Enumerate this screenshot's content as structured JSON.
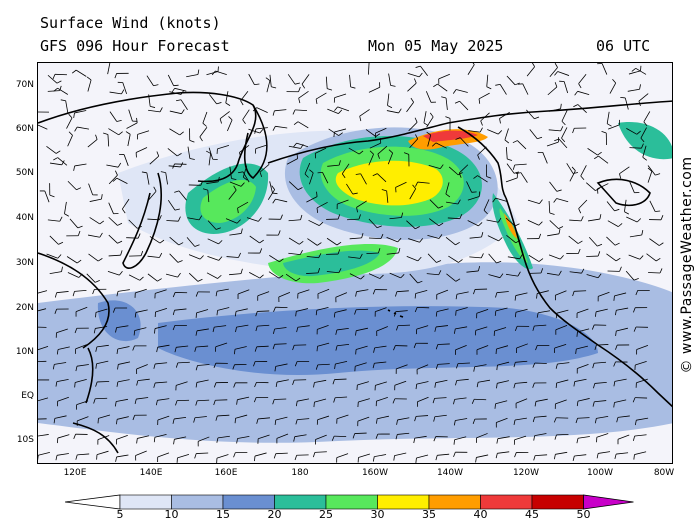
{
  "header": {
    "title": "Surface Wind (knots)",
    "forecast": "GFS 096 Hour Forecast",
    "date": "Mon 05 May 2025",
    "time": "06 UTC"
  },
  "credit": "© www.PassageWeather.com",
  "axes": {
    "lat_labels": [
      "70N",
      "60N",
      "50N",
      "40N",
      "30N",
      "20N",
      "10N",
      "EQ",
      "10S"
    ],
    "lon_labels": [
      "120E",
      "140E",
      "160E",
      "180",
      "160W",
      "140W",
      "120W",
      "100W",
      "80W"
    ]
  },
  "legend": {
    "labels": [
      "5",
      "10",
      "15",
      "20",
      "25",
      "30",
      "35",
      "40",
      "45",
      "50"
    ],
    "colors": [
      "#ffffff",
      "#dfe6f6",
      "#a9bde3",
      "#6a8fd1",
      "#2bbe9a",
      "#57e85c",
      "#ffee00",
      "#ff9d00",
      "#ef3a3a",
      "#c70000",
      "#c800c8"
    ]
  },
  "palette": {
    "calm": "#f4f4fa",
    "light": "#dfe6f6",
    "moderate": "#a9bde3",
    "fresh": "#6a8fd1",
    "teal": "#2bbe9a",
    "green": "#57e85c",
    "yellow": "#ffee00",
    "orange": "#ff9d00",
    "red": "#ef3a3a",
    "darkred": "#c70000",
    "land": "#000000"
  }
}
